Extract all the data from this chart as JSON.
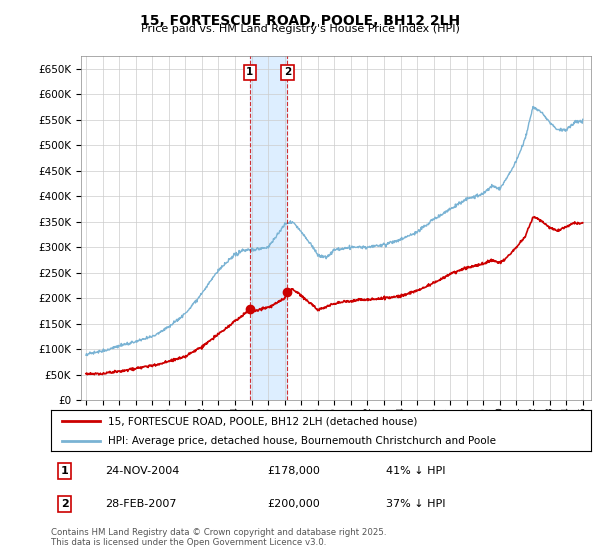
{
  "title": "15, FORTESCUE ROAD, POOLE, BH12 2LH",
  "subtitle": "Price paid vs. HM Land Registry's House Price Index (HPI)",
  "hpi_color": "#7ab3d4",
  "price_color": "#cc0000",
  "vline_color": "#cc0000",
  "shade_color": "#ddeeff",
  "background_color": "#ffffff",
  "grid_color": "#cccccc",
  "ylim": [
    0,
    675000
  ],
  "yticks": [
    0,
    50000,
    100000,
    150000,
    200000,
    250000,
    300000,
    350000,
    400000,
    450000,
    500000,
    550000,
    600000,
    650000
  ],
  "xlim_start": 1994.7,
  "xlim_end": 2025.5,
  "transactions": [
    {
      "label": "1",
      "date": "24-NOV-2004",
      "price": 178000,
      "pct": "41% ↓ HPI",
      "x": 2004.9
    },
    {
      "label": "2",
      "date": "28-FEB-2007",
      "price": 200000,
      "pct": "37% ↓ HPI",
      "x": 2007.17
    }
  ],
  "legend_line1": "15, FORTESCUE ROAD, POOLE, BH12 2LH (detached house)",
  "legend_line2": "HPI: Average price, detached house, Bournemouth Christchurch and Poole",
  "footnote": "Contains HM Land Registry data © Crown copyright and database right 2025.\nThis data is licensed under the Open Government Licence v3.0."
}
